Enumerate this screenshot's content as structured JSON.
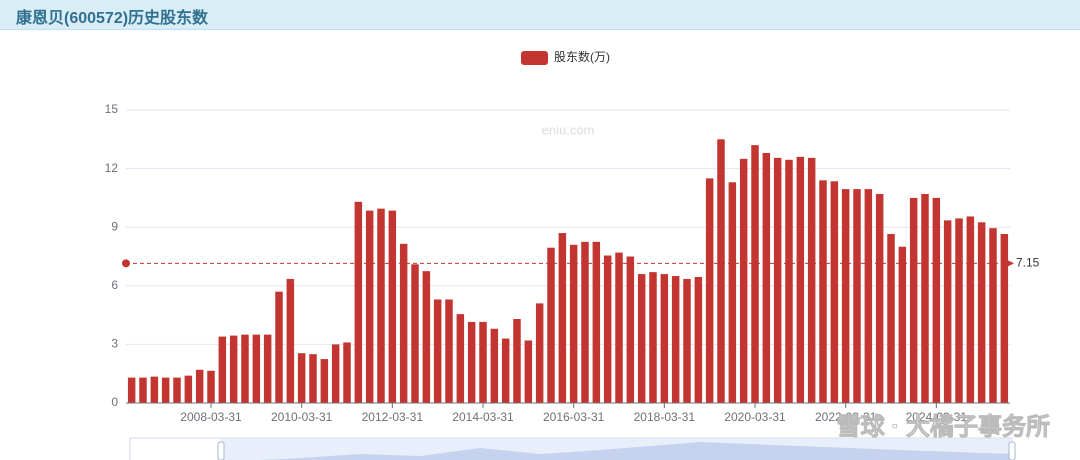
{
  "chart_data": {
    "type": "bar",
    "title": "康恩贝(600572)历史股东数",
    "legend": "股东数(万)",
    "color": "#c23531",
    "watermark": "eniu.com",
    "source_watermark": "雪球 · 大橘子事务所",
    "categories": [
      null,
      null,
      null,
      null,
      null,
      null,
      null,
      "2008-03-31",
      null,
      null,
      null,
      null,
      null,
      null,
      null,
      "2010-03-31",
      null,
      null,
      null,
      null,
      null,
      null,
      null,
      "2012-03-31",
      null,
      null,
      null,
      null,
      null,
      null,
      null,
      "2014-03-31",
      null,
      null,
      null,
      null,
      null,
      null,
      null,
      "2016-03-31",
      null,
      null,
      null,
      null,
      null,
      null,
      null,
      "2018-03-31",
      null,
      null,
      null,
      null,
      null,
      null,
      null,
      "2020-03-31",
      null,
      null,
      null,
      null,
      null,
      null,
      null,
      "2022-03-31",
      null,
      null,
      null,
      null,
      null,
      null,
      null,
      "2024-03-31",
      null,
      null,
      null,
      null,
      null,
      null
    ],
    "values": [
      1.3,
      1.3,
      1.35,
      1.3,
      1.3,
      1.4,
      1.7,
      1.65,
      3.4,
      3.45,
      3.5,
      3.5,
      3.5,
      5.7,
      6.35,
      2.55,
      2.5,
      2.25,
      3.0,
      3.1,
      10.3,
      9.85,
      9.95,
      9.85,
      8.15,
      7.1,
      6.75,
      5.3,
      5.3,
      4.55,
      4.15,
      4.15,
      3.8,
      3.3,
      4.3,
      3.2,
      5.1,
      7.95,
      8.7,
      8.1,
      8.25,
      8.25,
      7.55,
      7.7,
      7.5,
      6.6,
      6.7,
      6.6,
      6.5,
      6.35,
      6.45,
      11.5,
      13.5,
      11.3,
      12.5,
      13.2,
      12.8,
      12.55,
      12.45,
      12.6,
      12.55,
      11.4,
      11.35,
      10.95,
      10.95,
      10.95,
      10.7,
      8.65,
      8.0,
      10.5,
      10.7,
      10.5,
      9.35,
      9.45,
      9.55,
      9.25,
      8.95,
      8.65
    ],
    "ylim": [
      0,
      15
    ],
    "yticks": [
      0,
      3,
      6,
      9,
      12,
      15
    ],
    "grid": true,
    "markline": {
      "value": 7.15,
      "color": "#c23531"
    }
  }
}
